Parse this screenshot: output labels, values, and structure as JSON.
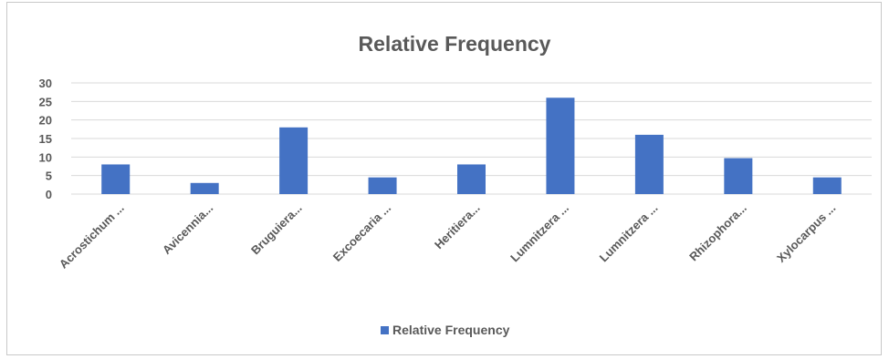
{
  "chart_data": {
    "type": "bar",
    "title": "Relative Frequency",
    "categories": [
      "Acrostichum ...",
      "Avicennia...",
      "Bruguiera...",
      "Excoecaria ...",
      "Heritiera...",
      "Lumnitzera ...",
      "Lumnitzera ...",
      "Rhizophora...",
      "Xylocarpus ..."
    ],
    "series": [
      {
        "name": "Relative Frequency",
        "values": [
          8,
          3,
          18,
          4.5,
          8,
          26,
          16,
          9.7,
          4.5
        ],
        "color": "#4472c4"
      }
    ],
    "ylim": [
      0,
      30
    ],
    "yticks": [
      0,
      5,
      10,
      15,
      20,
      25,
      30
    ],
    "xlabel": "",
    "ylabel": "",
    "grid": true,
    "legend": "bottom",
    "colors": {
      "bar": "#4472c4",
      "grid": "#d9d9d9",
      "text": "#595959"
    }
  }
}
